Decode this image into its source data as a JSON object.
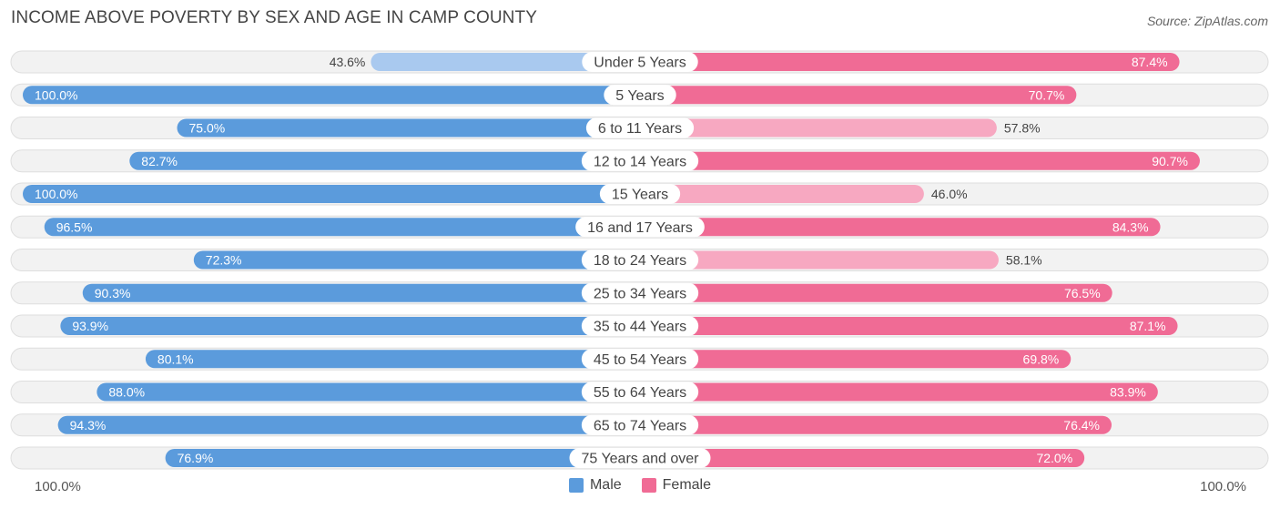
{
  "title": "INCOME ABOVE POVERTY BY SEX AND AGE IN CAMP COUNTY",
  "source": "Source: ZipAtlas.com",
  "axis": {
    "left_label": "100.0%",
    "right_label": "100.0%"
  },
  "legend": {
    "male": "Male",
    "female": "Female"
  },
  "colors": {
    "male_dark": "#5b9bdc",
    "male_light": "#a9c9ef",
    "female_dark": "#f06b95",
    "female_light": "#f7a8c1",
    "row_bg": "#f2f2f2",
    "row_border": "#dedede"
  },
  "chart_data": {
    "type": "bar",
    "orientation": "horizontal-diverging",
    "title": "INCOME ABOVE POVERTY BY SEX AND AGE IN CAMP COUNTY",
    "xlim": [
      0,
      100
    ],
    "categories": [
      "Under 5 Years",
      "5 Years",
      "6 to 11 Years",
      "12 to 14 Years",
      "15 Years",
      "16 and 17 Years",
      "18 to 24 Years",
      "25 to 34 Years",
      "35 to 44 Years",
      "45 to 54 Years",
      "55 to 64 Years",
      "65 to 74 Years",
      "75 Years and over"
    ],
    "series": [
      {
        "name": "Male",
        "values": [
          43.6,
          100.0,
          75.0,
          82.7,
          100.0,
          96.5,
          72.3,
          90.3,
          93.9,
          80.1,
          88.0,
          94.3,
          76.9
        ]
      },
      {
        "name": "Female",
        "values": [
          87.4,
          70.7,
          57.8,
          90.7,
          46.0,
          84.3,
          58.1,
          76.5,
          87.1,
          69.8,
          83.9,
          76.4,
          72.0
        ]
      }
    ],
    "labels": {
      "Male": [
        "43.6%",
        "100.0%",
        "75.0%",
        "82.7%",
        "100.0%",
        "96.5%",
        "72.3%",
        "90.3%",
        "93.9%",
        "80.1%",
        "88.0%",
        "94.3%",
        "76.9%"
      ],
      "Female": [
        "87.4%",
        "70.7%",
        "57.8%",
        "90.7%",
        "46.0%",
        "84.3%",
        "58.1%",
        "76.5%",
        "87.1%",
        "69.8%",
        "83.9%",
        "76.4%",
        "72.0%"
      ]
    },
    "legend_position": "bottom-center"
  }
}
